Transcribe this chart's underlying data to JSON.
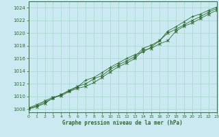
{
  "title": "Graphe pression niveau de la mer (hPa)",
  "background_color": "#cbe9f0",
  "grid_color": "#a8d8cc",
  "line_color": "#2d6a2d",
  "xlim": [
    0,
    23
  ],
  "ylim": [
    1007.5,
    1025.0
  ],
  "yticks": [
    1008,
    1010,
    1012,
    1014,
    1016,
    1018,
    1020,
    1022,
    1024
  ],
  "xticks": [
    0,
    1,
    2,
    3,
    4,
    5,
    6,
    7,
    8,
    9,
    10,
    11,
    12,
    13,
    14,
    15,
    16,
    17,
    18,
    19,
    20,
    21,
    22,
    23
  ],
  "hours": [
    0,
    1,
    2,
    3,
    4,
    5,
    6,
    7,
    8,
    9,
    10,
    11,
    12,
    13,
    14,
    15,
    16,
    17,
    18,
    19,
    20,
    21,
    22,
    23
  ],
  "series1": [
    1008.2,
    1008.7,
    1009.3,
    1009.9,
    1010.1,
    1010.8,
    1011.3,
    1011.6,
    1012.2,
    1013.0,
    1013.9,
    1014.7,
    1015.3,
    1016.0,
    1017.3,
    1017.6,
    1018.3,
    1018.8,
    1020.3,
    1021.1,
    1021.6,
    1022.3,
    1023.0,
    1023.6
  ],
  "series2": [
    1008.0,
    1008.4,
    1008.9,
    1009.8,
    1010.3,
    1011.0,
    1011.6,
    1012.0,
    1012.8,
    1013.3,
    1014.3,
    1015.0,
    1015.6,
    1016.3,
    1017.6,
    1018.1,
    1018.8,
    1020.0,
    1020.6,
    1021.3,
    1022.0,
    1022.6,
    1023.3,
    1023.9
  ],
  "series3": [
    1008.1,
    1008.5,
    1009.1,
    1009.7,
    1010.3,
    1010.9,
    1011.5,
    1012.6,
    1013.0,
    1013.8,
    1014.6,
    1015.3,
    1016.0,
    1016.6,
    1017.0,
    1017.8,
    1018.8,
    1020.3,
    1021.0,
    1021.8,
    1022.6,
    1023.0,
    1023.6,
    1024.1
  ]
}
